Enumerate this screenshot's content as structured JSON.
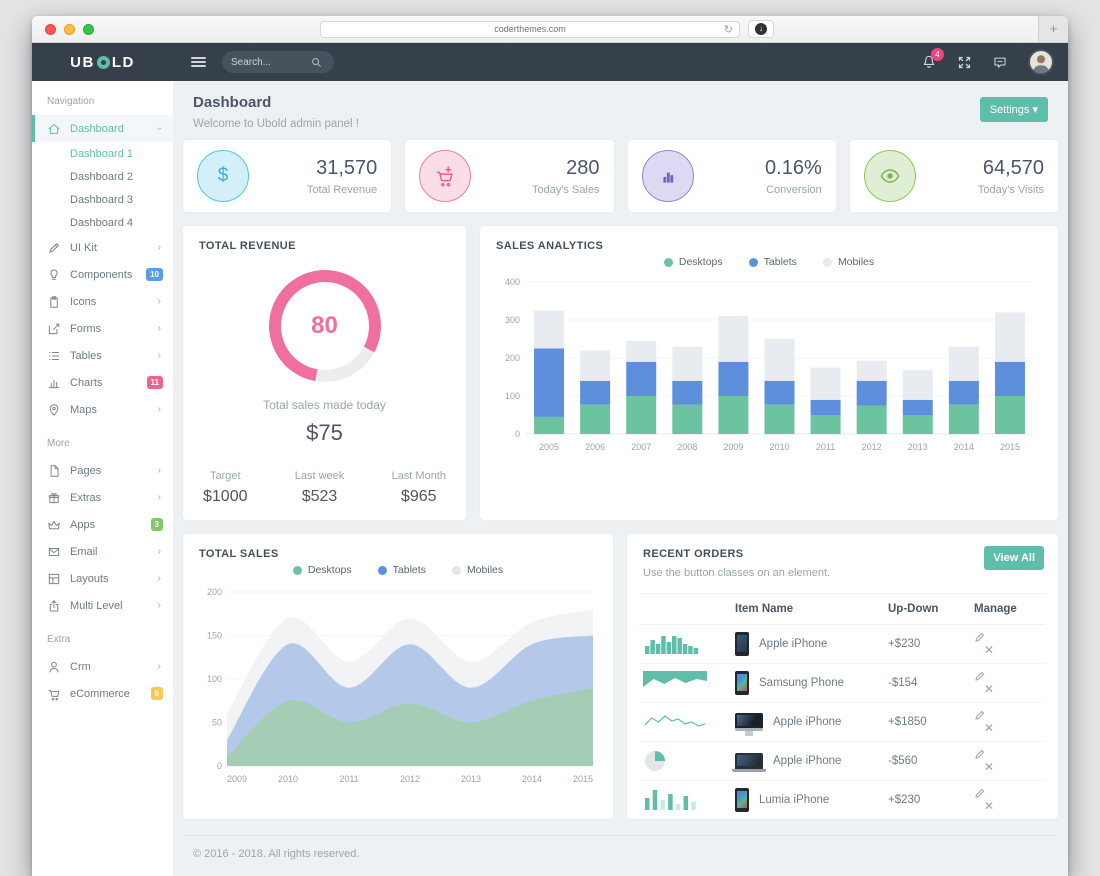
{
  "browser": {
    "url": "coderthemes.com"
  },
  "navbar": {
    "brand": "UBOLD",
    "search_placeholder": "Search...",
    "notification_count": "4"
  },
  "sidebar": {
    "sections": [
      {
        "header": "Navigation",
        "items": [
          {
            "label": "Dashboard",
            "icon": "home-icon",
            "active": true,
            "arrow": "down",
            "children": [
              {
                "label": "Dashboard 1",
                "active": true
              },
              {
                "label": "Dashboard 2",
                "active": false
              },
              {
                "label": "Dashboard 3",
                "active": false
              },
              {
                "label": "Dashboard 4",
                "active": false
              }
            ]
          },
          {
            "label": "UI Kit",
            "icon": "pen-icon",
            "arrow": "right"
          },
          {
            "label": "Components",
            "icon": "lightbulb-icon",
            "badge": {
              "text": "10",
              "color": "#5d9cec"
            }
          },
          {
            "label": "Icons",
            "icon": "clipboard-icon",
            "arrow": "right"
          },
          {
            "label": "Forms",
            "icon": "pencil-square-icon",
            "arrow": "right"
          },
          {
            "label": "Tables",
            "icon": "list-icon",
            "arrow": "right"
          },
          {
            "label": "Charts",
            "icon": "chart-bars-icon",
            "badge": {
              "text": "11",
              "color": "#f06292"
            }
          },
          {
            "label": "Maps",
            "icon": "map-pin-icon",
            "arrow": "right"
          }
        ]
      },
      {
        "header": "More",
        "items": [
          {
            "label": "Pages",
            "icon": "file-icon",
            "arrow": "right"
          },
          {
            "label": "Extras",
            "icon": "gift-icon",
            "arrow": "right"
          },
          {
            "label": "Apps",
            "icon": "crown-icon",
            "badge": {
              "text": "3",
              "color": "#81c868"
            }
          },
          {
            "label": "Email",
            "icon": "envelope-icon",
            "arrow": "right"
          },
          {
            "label": "Layouts",
            "icon": "layout-icon",
            "arrow": "right"
          },
          {
            "label": "Multi Level",
            "icon": "share-icon",
            "arrow": "right"
          }
        ]
      },
      {
        "header": "Extra",
        "items": [
          {
            "label": "Crm",
            "icon": "person-icon",
            "arrow": "right"
          },
          {
            "label": "eCommerce",
            "icon": "cart-icon",
            "badge": {
              "text": "6",
              "color": "#f9c851"
            }
          }
        ]
      }
    ]
  },
  "page": {
    "title": "Dashboard",
    "subtitle": "Welcome to Ubold admin panel !",
    "settings_label": "Settings"
  },
  "stats": [
    {
      "value": "31,570",
      "label": "Total Revenue",
      "icon": "dollar-icon",
      "circle_bg": "#d3f0f9",
      "circle_border": "#4fc6e5",
      "icon_color": "#3bafda"
    },
    {
      "value": "280",
      "label": "Today's Sales",
      "icon": "cart-plus-icon",
      "circle_bg": "#fbdde8",
      "circle_border": "#f37ca4",
      "icon_color": "#ef5d8c"
    },
    {
      "value": "0.16%",
      "label": "Conversion",
      "icon": "chart-bars-icon",
      "circle_bg": "#ded9f2",
      "circle_border": "#9287cc",
      "icon_color": "#7265b8"
    },
    {
      "value": "64,570",
      "label": "Today's Visits",
      "icon": "eye-icon",
      "circle_bg": "#e0efd3",
      "circle_border": "#8cc665",
      "icon_color": "#7ab552"
    }
  ],
  "total_revenue": {
    "title": "TOTAL REVENUE",
    "percent": 80,
    "ring_color": "#ef6f9f",
    "ring_track": "#ebedef",
    "caption": "Total sales made today",
    "amount": "$75",
    "metrics": [
      {
        "label": "Target",
        "value": "$1000"
      },
      {
        "label": "Last week",
        "value": "$523"
      },
      {
        "label": "Last Month",
        "value": "$965"
      }
    ]
  },
  "chart_data": [
    {
      "id": "sales_analytics",
      "type": "bar",
      "stacked": true,
      "title": "SALES ANALYTICS",
      "categories": [
        "2005",
        "2006",
        "2007",
        "2008",
        "2009",
        "2010",
        "2011",
        "2012",
        "2013",
        "2014",
        "2015"
      ],
      "series": [
        {
          "name": "Desktops",
          "color": "#6cc3a0",
          "values": [
            45,
            77,
            100,
            77,
            100,
            77,
            50,
            75,
            50,
            77,
            100
          ]
        },
        {
          "name": "Tablets",
          "color": "#5d8fdc",
          "values": [
            180,
            63,
            90,
            63,
            90,
            63,
            40,
            65,
            40,
            63,
            90
          ]
        },
        {
          "name": "Mobiles",
          "color": "#e8ebf0",
          "values": [
            100,
            80,
            55,
            90,
            120,
            110,
            85,
            53,
            78,
            90,
            130
          ]
        }
      ],
      "ylim": [
        0,
        400
      ],
      "yticks": [
        0,
        100,
        200,
        300,
        400
      ],
      "grid": true,
      "legend_position": "top"
    },
    {
      "id": "total_sales",
      "type": "area",
      "stacked": true,
      "title": "TOTAL SALES",
      "x": [
        "2009",
        "2010",
        "2011",
        "2012",
        "2013",
        "2014",
        "2015"
      ],
      "series": [
        {
          "name": "Desktops",
          "color": "#a5ccb4",
          "values": [
            10,
            75,
            50,
            72,
            50,
            75,
            90
          ]
        },
        {
          "name": "Tablets",
          "color": "#b4c8e9",
          "values": [
            20,
            65,
            40,
            68,
            40,
            65,
            60
          ]
        },
        {
          "name": "Mobiles",
          "color": "#f2f3f5",
          "values": [
            30,
            30,
            30,
            30,
            30,
            25,
            30
          ]
        }
      ],
      "ylim": [
        0,
        200
      ],
      "yticks": [
        0,
        50,
        100,
        150,
        200
      ],
      "grid": true,
      "legend_position": "top",
      "legend_colors": [
        "#6cc3a0",
        "#5d8fdc",
        "#e3e7ea"
      ]
    }
  ],
  "recent_orders": {
    "title": "RECENT ORDERS",
    "subtitle": "Use the button classes on an element.",
    "button_label": "View All",
    "columns": [
      "Item Name",
      "Up-Down",
      "Manage"
    ],
    "rows": [
      {
        "item": "Apple iPhone",
        "device": "phone-dark",
        "updown": "+$230",
        "positive": true,
        "spark": {
          "type": "bars",
          "color": "#5fbeaa",
          "values": [
            4,
            7,
            5,
            9,
            6,
            9,
            8,
            5,
            4,
            3
          ]
        }
      },
      {
        "item": "Samsung Phone",
        "device": "phone-colorful",
        "updown": "-$154",
        "positive": false,
        "spark": {
          "type": "inverted-area",
          "color": "#5fbeaa",
          "values": [
            16,
            8,
            13,
            7,
            12,
            8,
            10
          ]
        }
      },
      {
        "item": "Apple iPhone",
        "device": "imac",
        "updown": "+$1850",
        "positive": true,
        "spark": {
          "type": "line",
          "color": "#5fbeaa",
          "values": [
            12,
            5,
            9,
            3,
            8,
            6,
            11,
            9,
            13,
            11
          ]
        }
      },
      {
        "item": "Apple iPhone",
        "device": "laptop",
        "updown": "-$560",
        "positive": false,
        "spark": {
          "type": "pie",
          "color": "#5fbeaa",
          "track": "#e3e7ea",
          "values": [
            25,
            75
          ]
        }
      },
      {
        "item": "Lumia iPhone",
        "device": "phone-colorful",
        "updown": "+$230",
        "positive": true,
        "spark": {
          "type": "bars",
          "color": "#5fbeaa",
          "alt_color": "#cde9df",
          "values": [
            6,
            10,
            5,
            8,
            3,
            7,
            4
          ],
          "alt_pattern": [
            0,
            0,
            1,
            0,
            1,
            0,
            1
          ]
        }
      }
    ]
  },
  "footer": {
    "text": "© 2016 - 2018. All rights reserved."
  }
}
